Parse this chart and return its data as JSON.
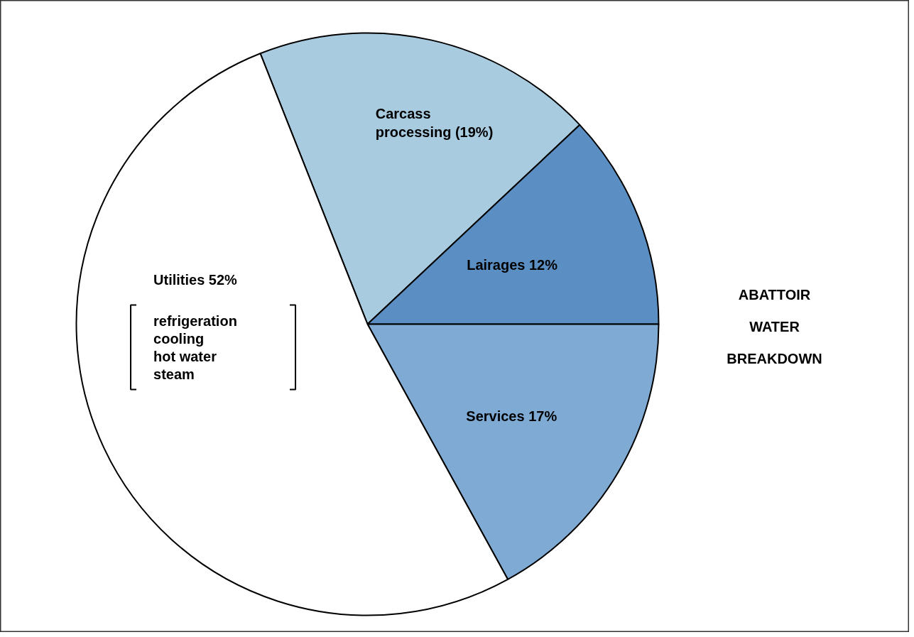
{
  "chart_data": {
    "type": "pie",
    "title": "ABATTOIR WATER BREAKDOWN",
    "categories": [
      "Carcass processing (19%)",
      "Lairages 12%",
      "Services 17%",
      "Utilities 52%"
    ],
    "values": [
      19,
      12,
      17,
      52
    ],
    "colors": [
      "#a9cbe0",
      "#5b8fc4",
      "#7eaad4",
      "#ffffff"
    ],
    "annotations": [
      "refrigeration",
      "cooling",
      "hot water",
      "steam"
    ]
  }
}
